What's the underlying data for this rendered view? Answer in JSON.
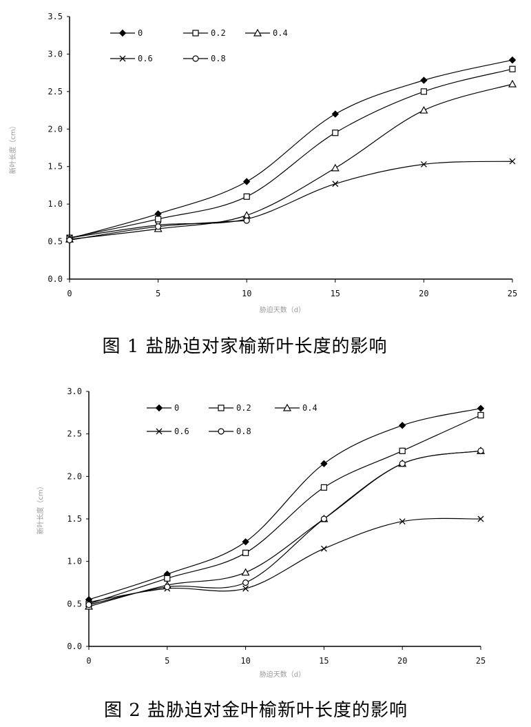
{
  "figures": [
    {
      "caption": "图 1 盐胁迫对家榆新叶长度的影响",
      "xlabel": "胁迫天数（d）",
      "ylabel": "新叶长度（cm）"
    },
    {
      "caption": "图 2 盐胁迫对金叶榆新叶长度的影响",
      "xlabel": "胁迫天数（d）",
      "ylabel": "新叶长度（cm）"
    }
  ],
  "chart_data": [
    {
      "type": "line",
      "title": "",
      "xlabel": "胁迫天数（d）",
      "ylabel": "新叶长度（cm）",
      "x": [
        0,
        5,
        10,
        15,
        20,
        25
      ],
      "x_ticks": [
        "0",
        "5",
        "10",
        "15",
        "20",
        "25"
      ],
      "y_ticks": [
        "0.0",
        "0.5",
        "1.0",
        "1.5",
        "2.0",
        "2.5",
        "3.0",
        "3.5"
      ],
      "xlim": [
        0,
        25
      ],
      "ylim": [
        0,
        3.5
      ],
      "grid": false,
      "legend_position": "top-left",
      "series": [
        {
          "name": "0",
          "marker": "diamond-filled",
          "values": [
            0.54,
            0.87,
            1.3,
            2.2,
            2.65,
            2.92
          ]
        },
        {
          "name": "0.2",
          "marker": "square-open",
          "values": [
            0.55,
            0.8,
            1.1,
            1.95,
            2.5,
            2.8
          ]
        },
        {
          "name": "0.4",
          "legend_label": "0.4",
          "marker": "triangle-open",
          "values": [
            0.53,
            0.67,
            0.85,
            1.48,
            2.25,
            2.6
          ]
        },
        {
          "name": "0.6",
          "marker": "x",
          "values": [
            0.55,
            0.72,
            0.8,
            1.27,
            1.53,
            1.57
          ]
        },
        {
          "name": "0.8",
          "marker": "circle-open",
          "values": [
            0.52,
            0.7,
            0.78,
            null,
            null,
            null
          ]
        }
      ]
    },
    {
      "type": "line",
      "title": "",
      "xlabel": "胁迫天数（d）",
      "ylabel": "新叶长度（cm）",
      "x": [
        0,
        5,
        10,
        15,
        20,
        25
      ],
      "x_ticks": [
        "0",
        "5",
        "10",
        "15",
        "20",
        "25"
      ],
      "y_ticks": [
        "0.0",
        "0.5",
        "1.0",
        "1.5",
        "2.0",
        "2.5",
        "3.0"
      ],
      "xlim": [
        0,
        25
      ],
      "ylim": [
        0,
        3.0
      ],
      "grid": false,
      "legend_position": "top-left",
      "series": [
        {
          "name": "0",
          "marker": "diamond-filled",
          "values": [
            0.55,
            0.85,
            1.23,
            2.15,
            2.6,
            2.8
          ]
        },
        {
          "name": "0.2",
          "marker": "square-open",
          "values": [
            0.5,
            0.8,
            1.1,
            1.87,
            2.3,
            2.72
          ]
        },
        {
          "name": "0.4",
          "legend_label": "0.4",
          "marker": "triangle-open",
          "values": [
            0.47,
            0.72,
            0.87,
            1.5,
            2.15,
            2.3
          ]
        },
        {
          "name": "0.6",
          "marker": "x",
          "values": [
            0.52,
            0.68,
            0.68,
            1.15,
            1.47,
            1.5
          ]
        },
        {
          "name": "0.8",
          "marker": "circle-open",
          "values": [
            0.49,
            0.7,
            0.75,
            1.5,
            2.15,
            2.3
          ]
        }
      ]
    }
  ]
}
